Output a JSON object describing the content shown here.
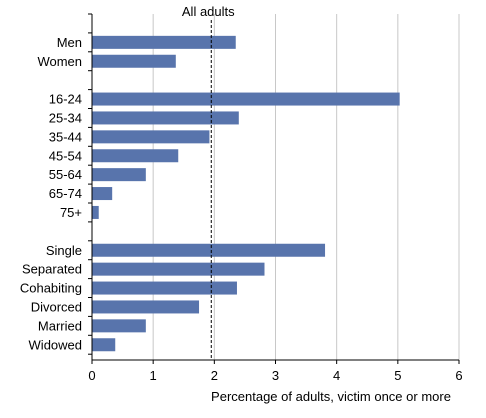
{
  "chart_data": {
    "type": "bar",
    "orientation": "horizontal",
    "categories": [
      "Men",
      "Women",
      "16-24",
      "25-34",
      "35-44",
      "45-54",
      "55-64",
      "65-74",
      "75+",
      "Single",
      "Separated",
      "Cohabiting",
      "Divorced",
      "Married",
      "Widowed"
    ],
    "groups": [
      {
        "categories": [
          "Men",
          "Women"
        ]
      },
      {
        "categories": [
          "16-24",
          "25-34",
          "35-44",
          "45-54",
          "55-64",
          "65-74",
          "75+"
        ]
      },
      {
        "categories": [
          "Single",
          "Separated",
          "Cohabiting",
          "Divorced",
          "Married",
          "Widowed"
        ]
      }
    ],
    "values": [
      2.35,
      1.37,
      5.03,
      2.4,
      1.92,
      1.41,
      0.88,
      0.33,
      0.11,
      3.81,
      2.82,
      2.37,
      1.75,
      0.88,
      0.38
    ],
    "xlabel": "Percentage of adults,  victim once or more",
    "ylabel": "",
    "xlim": [
      0,
      6
    ],
    "xticks": [
      0,
      1,
      2,
      3,
      4,
      5,
      6
    ],
    "grid": "vertical",
    "bar_color": "#5874ac",
    "reference_line": {
      "label": "All adults",
      "value": 1.95,
      "style": "dashed"
    }
  }
}
